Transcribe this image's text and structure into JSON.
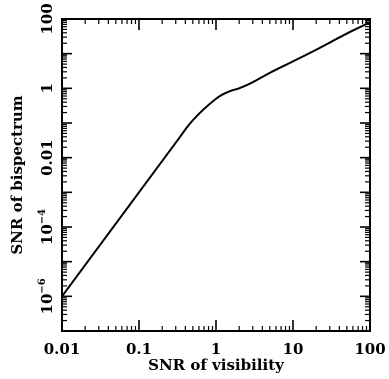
{
  "chart_data": {
    "type": "line",
    "xlabel": "SNR of visibility",
    "ylabel": "SNR of bispectrum",
    "xscale": "log",
    "yscale": "log",
    "xlim": [
      0.01,
      100
    ],
    "ylim": [
      1e-07,
      100
    ],
    "grid": false,
    "x_ticks": [
      {
        "value": 0.01,
        "label": "0.01"
      },
      {
        "value": 0.1,
        "label": "0.1"
      },
      {
        "value": 1,
        "label": "1"
      },
      {
        "value": 10,
        "label": "10"
      },
      {
        "value": 100,
        "label": "100"
      }
    ],
    "y_ticks": [
      {
        "value": 1e-06,
        "base": "10",
        "exp": "−6"
      },
      {
        "value": 0.0001,
        "base": "10",
        "exp": "−4"
      },
      {
        "value": 0.01,
        "base": "0.01",
        "exp": ""
      },
      {
        "value": 1,
        "base": "1",
        "exp": ""
      },
      {
        "value": 100,
        "base": "100",
        "exp": ""
      }
    ],
    "series": [
      {
        "color": "#000000",
        "x": [
          0.01,
          0.1,
          0.3,
          0.5,
          1,
          1.5,
          2,
          3,
          5,
          10,
          20,
          50,
          100
        ],
        "y": [
          1e-06,
          0.001,
          0.027,
          0.12,
          0.5,
          0.82,
          1.0,
          1.5,
          2.8,
          6,
          13,
          38,
          80
        ]
      }
    ]
  }
}
